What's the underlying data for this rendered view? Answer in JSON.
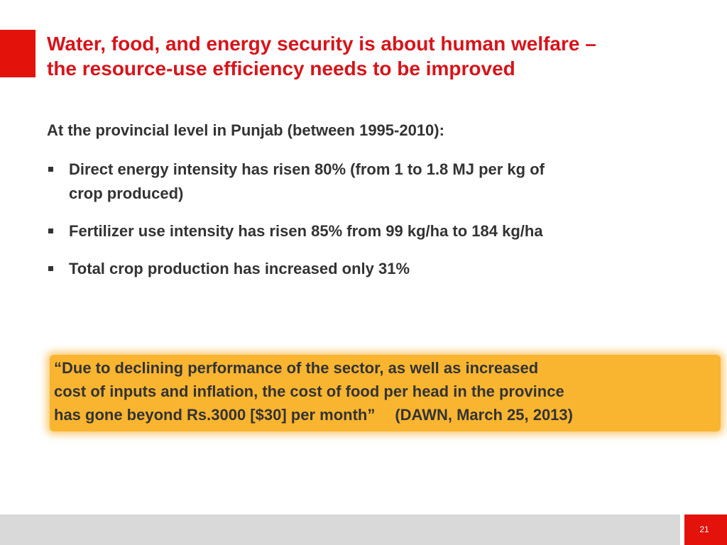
{
  "slide": {
    "title_lines": [
      "Water, food, and energy security is about human welfare –",
      "the resource-use efficiency needs to be improved"
    ],
    "intro": "At the provincial level in Punjab (between 1995-2010):",
    "bullets": [
      {
        "lines": [
          "Direct energy intensity has risen 80% (from 1 to 1.8 MJ per kg of",
          "crop produced)"
        ]
      },
      {
        "lines": [
          "Fertilizer use intensity has risen 85% from 99 kg/ha to 184 kg/ha"
        ]
      },
      {
        "lines": [
          "Total crop production has increased only 31%"
        ]
      }
    ],
    "quote": {
      "lines": [
        "“Due to declining performance of the sector, as well as increased",
        "cost of inputs and inflation, the cost of food per head in the province",
        "has gone beyond Rs.3000 [$30] per month”"
      ],
      "source": "(DAWN, March 25, 2013)"
    },
    "page_number": "21"
  },
  "colors": {
    "accent_red": "#e3120b",
    "title_red": "#d7141a",
    "body_text": "#333333",
    "highlight_orange": "#f9b530",
    "footer_gray": "#d9d9d9"
  }
}
